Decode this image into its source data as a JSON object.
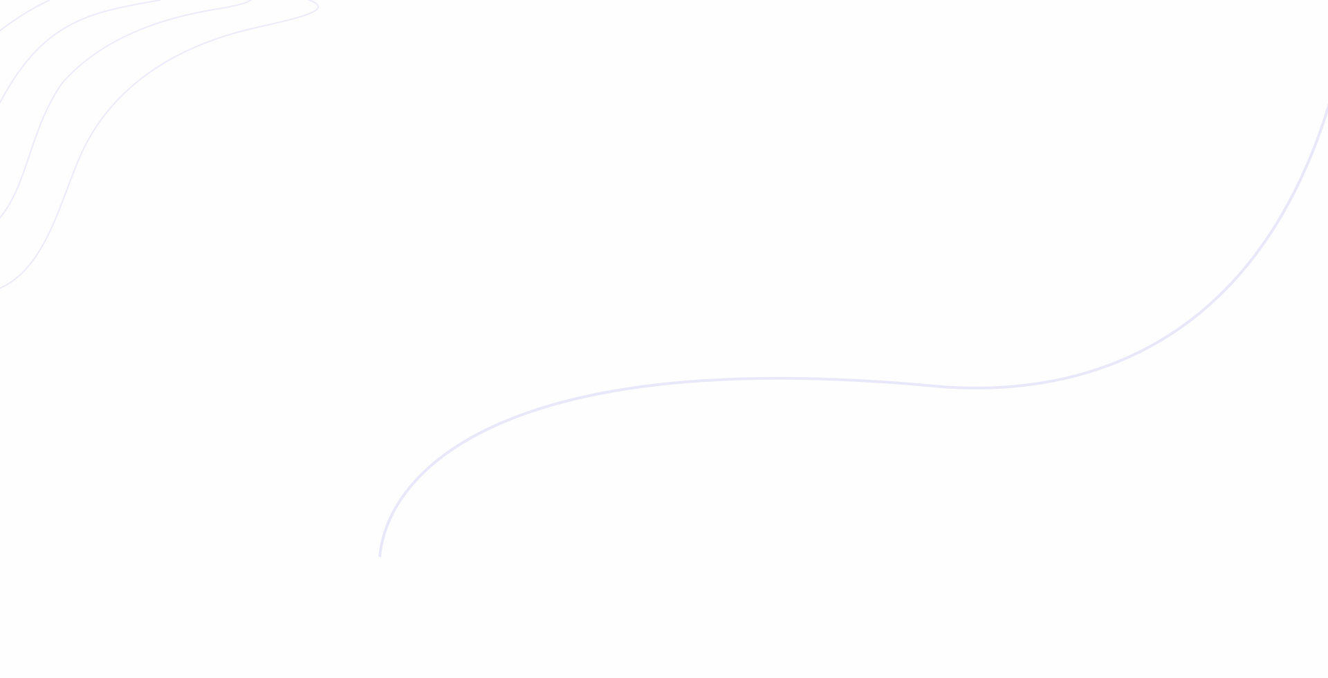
{
  "page": {
    "background_color": "#fefefe"
  },
  "decorations": {
    "line_color": "#ecebfb",
    "line_color_strong": "#e9e8fb"
  }
}
